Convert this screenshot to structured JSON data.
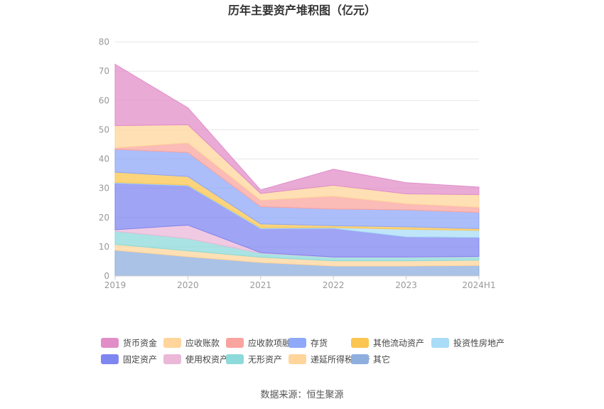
{
  "chart_data": {
    "type": "area",
    "stacked": true,
    "title": "历年主要资产堆积图（亿元）",
    "x": [
      "2019",
      "2020",
      "2021",
      "2022",
      "2023",
      "2024H1"
    ],
    "ylim": [
      0,
      80
    ],
    "yticks": [
      0,
      10,
      20,
      30,
      40,
      50,
      60,
      70,
      80
    ],
    "grid": true,
    "legend_position": "bottom",
    "series": [
      {
        "name": "其它",
        "color": "#8eaede",
        "values": [
          8.8,
          6.6,
          4.6,
          3.4,
          3.4,
          3.6
        ]
      },
      {
        "name": "递延所得税资产",
        "color": "#ffd59b",
        "values": [
          2.0,
          2.0,
          1.8,
          1.8,
          1.8,
          1.8
        ]
      },
      {
        "name": "无形资产",
        "color": "#8ed9d9",
        "values": [
          4.5,
          4.2,
          1.4,
          1.2,
          1.2,
          1.2
        ]
      },
      {
        "name": "使用权资产",
        "color": "#ebb8d8",
        "values": [
          0.5,
          4.6,
          0.2,
          0.1,
          0.1,
          0.1
        ]
      },
      {
        "name": "固定资产",
        "color": "#7f86f0",
        "values": [
          16.0,
          13.5,
          8.2,
          9.8,
          6.9,
          6.5
        ]
      },
      {
        "name": "投资性房地产",
        "color": "#a9dcf7",
        "values": [
          0.2,
          0.2,
          0.3,
          0.3,
          2.6,
          2.4
        ]
      },
      {
        "name": "其他流动资产",
        "color": "#fbc550",
        "values": [
          3.5,
          2.9,
          1.3,
          0.6,
          0.8,
          0.6
        ]
      },
      {
        "name": "存货",
        "color": "#8fa8f8",
        "values": [
          7.8,
          8.2,
          5.9,
          5.7,
          5.8,
          5.5
        ]
      },
      {
        "name": "应收款项融资",
        "color": "#f9a49f",
        "values": [
          0.5,
          3.3,
          2.2,
          4.4,
          2.1,
          1.8
        ]
      },
      {
        "name": "应收账款",
        "color": "#ffd59b",
        "values": [
          7.6,
          6.2,
          2.3,
          3.7,
          3.4,
          4.3
        ]
      },
      {
        "name": "货币资金",
        "color": "#e18ec8",
        "values": [
          21.0,
          5.8,
          1.2,
          5.5,
          3.8,
          2.6
        ]
      }
    ],
    "legend_order": [
      "货币资金",
      "应收账款",
      "应收款项融资",
      "存货",
      "其他流动资产",
      "投资性房地产",
      "固定资产",
      "使用权资产",
      "无形资产",
      "递延所得税资产",
      "其它"
    ]
  },
  "footer": {
    "source": "数据来源：恒生聚源"
  }
}
